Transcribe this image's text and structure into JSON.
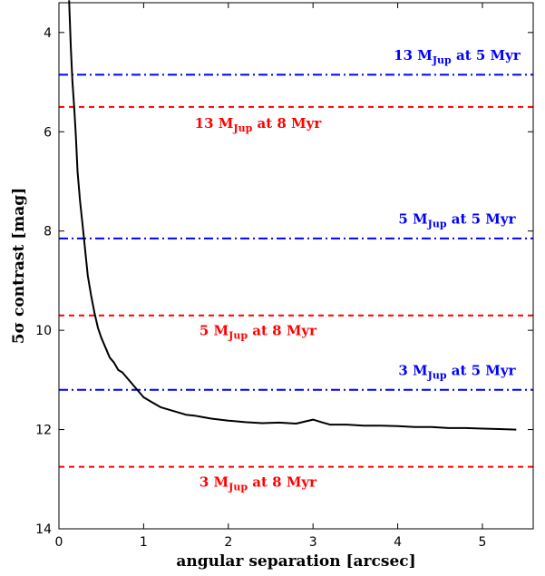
{
  "chart_data": {
    "type": "line",
    "title": "",
    "xlabel": "angular separation [arcsec]",
    "ylabel": "5σ contrast [mag]",
    "xlim": [
      0,
      5.6
    ],
    "ylim": [
      14,
      3.4
    ],
    "y_inverted": true,
    "grid": false,
    "xticks": [
      0,
      1,
      2,
      3,
      4,
      5
    ],
    "yticks": [
      4,
      6,
      8,
      10,
      12,
      14
    ],
    "series": [
      {
        "color": "#000000",
        "style": "solid",
        "x": [
          0.12,
          0.14,
          0.16,
          0.18,
          0.2,
          0.22,
          0.25,
          0.28,
          0.31,
          0.34,
          0.38,
          0.42,
          0.46,
          0.5,
          0.55,
          0.6,
          0.65,
          0.7,
          0.75,
          0.8,
          0.85,
          0.9,
          0.95,
          1.0,
          1.1,
          1.2,
          1.3,
          1.4,
          1.5,
          1.6,
          1.7,
          1.8,
          1.9,
          2.0,
          2.2,
          2.4,
          2.6,
          2.8,
          3.0,
          3.1,
          3.2,
          3.4,
          3.6,
          3.8,
          4.0,
          4.2,
          4.4,
          4.6,
          4.8,
          5.0,
          5.2,
          5.4
        ],
        "y": [
          3.35,
          4.3,
          5.0,
          5.5,
          6.1,
          6.8,
          7.4,
          7.9,
          8.4,
          8.9,
          9.3,
          9.65,
          9.95,
          10.15,
          10.35,
          10.55,
          10.65,
          10.8,
          10.85,
          10.95,
          11.05,
          11.15,
          11.25,
          11.35,
          11.45,
          11.55,
          11.6,
          11.65,
          11.7,
          11.72,
          11.75,
          11.78,
          11.8,
          11.82,
          11.85,
          11.87,
          11.86,
          11.88,
          11.8,
          11.85,
          11.9,
          11.9,
          11.92,
          11.92,
          11.93,
          11.95,
          11.95,
          11.97,
          11.97,
          11.98,
          11.99,
          12.0
        ]
      }
    ],
    "reference_lines": [
      {
        "y": 4.85,
        "color": "#0000ff",
        "style": "dashdot",
        "label": {
          "pre": "13",
          "m": "M",
          "sub": "Jup",
          "post": "at 5 Myr"
        },
        "label_x": 4.7,
        "label_y": 4.55
      },
      {
        "y": 5.5,
        "color": "#ff0000",
        "style": "dashed",
        "label": {
          "pre": "13",
          "m": "M",
          "sub": "Jup",
          "post": "at 8 Myr"
        },
        "label_x": 2.35,
        "label_y": 5.92
      },
      {
        "y": 8.15,
        "color": "#0000ff",
        "style": "dashdot",
        "label": {
          "pre": "5",
          "m": "M",
          "sub": "Jup",
          "post": "at 5 Myr"
        },
        "label_x": 4.7,
        "label_y": 7.85
      },
      {
        "y": 9.7,
        "color": "#ff0000",
        "style": "dashed",
        "label": {
          "pre": "5",
          "m": "M",
          "sub": "Jup",
          "post": "at 8 Myr"
        },
        "label_x": 2.35,
        "label_y": 10.1
      },
      {
        "y": 11.2,
        "color": "#0000ff",
        "style": "dashdot",
        "label": {
          "pre": "3",
          "m": "M",
          "sub": "Jup",
          "post": "at 5 Myr"
        },
        "label_x": 4.7,
        "label_y": 10.9
      },
      {
        "y": 12.75,
        "color": "#ff0000",
        "style": "dashed",
        "label": {
          "pre": "3",
          "m": "M",
          "sub": "Jup",
          "post": "at 8 Myr"
        },
        "label_x": 2.35,
        "label_y": 13.15
      }
    ]
  }
}
